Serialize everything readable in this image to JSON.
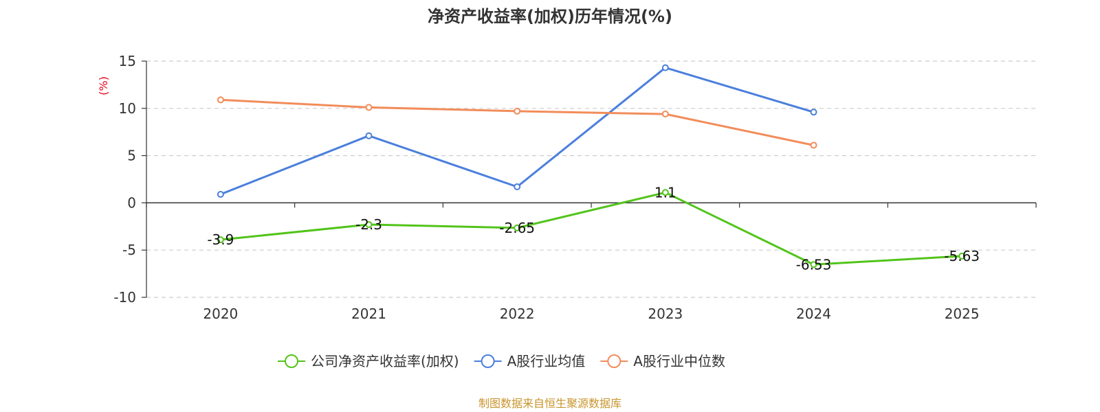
{
  "chart_data": {
    "type": "line",
    "title": "净资产收益率(加权)历年情况(%)",
    "ylabel": "(%)",
    "xlabel": "",
    "categories": [
      "2020",
      "2021",
      "2022",
      "2023",
      "2024",
      "2025"
    ],
    "ylim": [
      -10,
      15
    ],
    "yticks": [
      15,
      10,
      5,
      0,
      -5,
      -10
    ],
    "grid": true,
    "legend_position": "bottom-center",
    "series": [
      {
        "name": "公司净资产收益率(加权)",
        "color": "#52c41a",
        "values": [
          -3.9,
          -2.3,
          -2.65,
          1.1,
          -6.53,
          -5.63
        ],
        "labels": [
          "-3.9",
          "-2.3",
          "-2.65",
          "1.1",
          "-6.53",
          "-5.63"
        ]
      },
      {
        "name": "A股行业均值",
        "color": "#4a7fdc",
        "values": [
          0.9,
          7.1,
          1.7,
          14.3,
          9.6,
          null
        ]
      },
      {
        "name": "A股行业中位数",
        "color": "#f28c5a",
        "values": [
          10.9,
          10.1,
          9.7,
          9.4,
          6.1,
          null
        ]
      }
    ]
  },
  "source": "制图数据来自恒生聚源数据库"
}
